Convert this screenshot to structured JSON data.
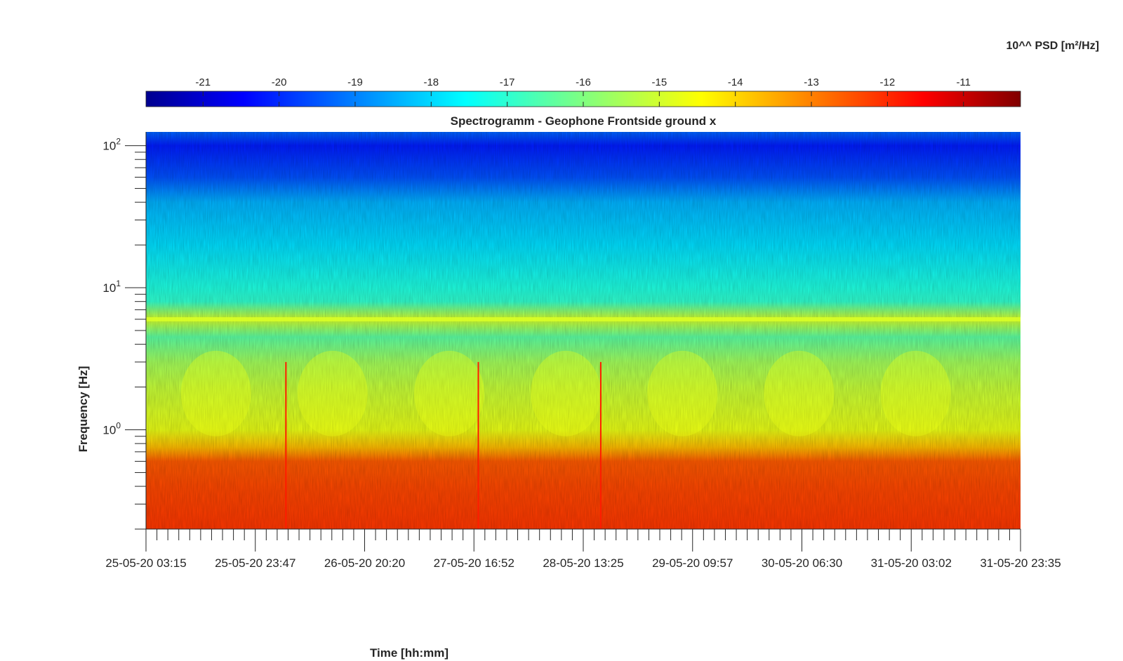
{
  "chart_data": {
    "type": "heatmap",
    "title": "Spectrogramm - Geophone Frontside ground x",
    "xlabel": "Time [hh:mm]",
    "ylabel": "Frequency [Hz]",
    "colorbar_label": "10^^ PSD [m²/Hz]",
    "colorbar_ticks": [
      -21,
      -20,
      -19,
      -18,
      -17,
      -16,
      -15,
      -14,
      -13,
      -12,
      -11
    ],
    "colorbar_range": [
      -21.75,
      -10.25
    ],
    "colormap": "jet",
    "x_ticks": [
      "25-05-20 03:15",
      "25-05-20 23:47",
      "26-05-20 20:20",
      "27-05-20 16:52",
      "28-05-20 13:25",
      "29-05-20 09:57",
      "30-05-20 06:30",
      "31-05-20 03:02",
      "31-05-20 23:35"
    ],
    "x_minor_ticks_per_major": 10,
    "y_scale": "log",
    "y_ticks": [
      {
        "base": "10",
        "exp": "0",
        "value": 1
      },
      {
        "base": "10",
        "exp": "1",
        "value": 10
      },
      {
        "base": "10",
        "exp": "2",
        "value": 100
      }
    ],
    "ylim": [
      0.2,
      125
    ],
    "psd_profile_by_frequency": [
      {
        "frequency": 0.2,
        "log10_psd": -12.3
      },
      {
        "frequency": 0.4,
        "log10_psd": -12.5
      },
      {
        "frequency": 0.6,
        "log10_psd": -12.7
      },
      {
        "frequency": 0.75,
        "log10_psd": -13.8
      },
      {
        "frequency": 1.0,
        "log10_psd": -14.8
      },
      {
        "frequency": 2.0,
        "log10_psd": -15.2
      },
      {
        "frequency": 3.0,
        "log10_psd": -15.6
      },
      {
        "frequency": 4.5,
        "log10_psd": -16.4
      },
      {
        "frequency": 6.0,
        "log10_psd": -15.0
      },
      {
        "frequency": 8.0,
        "log10_psd": -16.9
      },
      {
        "frequency": 10.0,
        "log10_psd": -17.1
      },
      {
        "frequency": 20.0,
        "log10_psd": -17.8
      },
      {
        "frequency": 40.0,
        "log10_psd": -18.3
      },
      {
        "frequency": 60.0,
        "log10_psd": -19.4
      },
      {
        "frequency": 100.0,
        "log10_psd": -20.0
      },
      {
        "frequency": 125.0,
        "log10_psd": -19.2
      }
    ],
    "grid": false
  }
}
